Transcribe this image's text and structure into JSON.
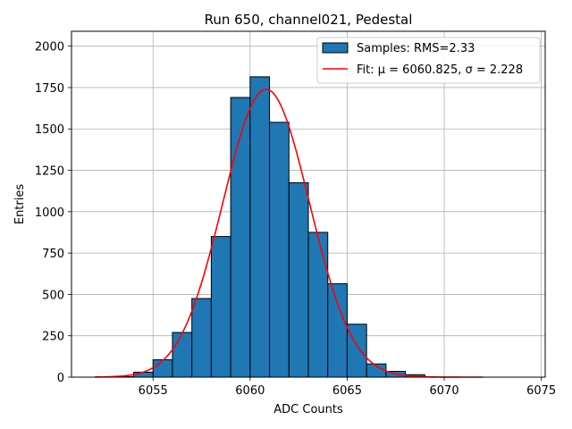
{
  "chart_data": {
    "type": "bar",
    "title": "Run 650, channel021, Pedestal",
    "xlabel": "ADC Counts",
    "ylabel": "Entries",
    "xlim": [
      6050.8,
      6075.2
    ],
    "ylim": [
      0,
      2090
    ],
    "xticks": [
      6055,
      6060,
      6065,
      6070,
      6075
    ],
    "yticks": [
      0,
      250,
      500,
      750,
      1000,
      1250,
      1500,
      1750,
      2000
    ],
    "grid": true,
    "legend_position": "top-right",
    "histogram": {
      "name": "Samples: RMS=2.33",
      "color": "#1f77b4",
      "edge_color": "#000000",
      "bin_width": 1,
      "bin_starts": [
        6053,
        6054,
        6055,
        6056,
        6057,
        6058,
        6059,
        6060,
        6061,
        6062,
        6063,
        6064,
        6065,
        6066,
        6067,
        6068
      ],
      "counts": [
        3,
        30,
        105,
        270,
        475,
        850,
        1690,
        1815,
        1540,
        1175,
        875,
        565,
        320,
        80,
        35,
        15
      ]
    },
    "fit": {
      "name": "Fit: μ = 6060.825, σ = 2.228",
      "color": "#ff0000",
      "mu": 6060.825,
      "sigma": 2.228,
      "amplitude": 1740,
      "x_range": [
        6052,
        6072
      ]
    }
  }
}
